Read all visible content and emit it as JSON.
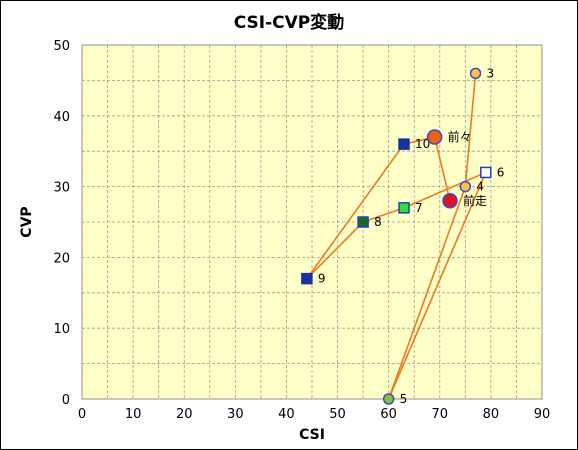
{
  "chart_data": {
    "type": "scatter",
    "title": "CSI-CVP変動",
    "xlabel": "CSI",
    "ylabel": "CVP",
    "xlim": [
      0,
      90
    ],
    "ylim": [
      0,
      50
    ],
    "xticks": [
      0,
      10,
      20,
      30,
      40,
      50,
      60,
      70,
      80,
      90
    ],
    "yticks": [
      0,
      10,
      20,
      30,
      40,
      50
    ],
    "grid": true,
    "line_color": "#f07820",
    "plot_background": "#ffffc8",
    "path_order": [
      "3",
      "4",
      "5",
      "6",
      "7",
      "8",
      "9",
      "10",
      "前々",
      "前走"
    ],
    "points": [
      {
        "label": "3",
        "x": 77,
        "y": 46,
        "marker": "circle",
        "fill": "#ffc040",
        "stroke": "#3050d0"
      },
      {
        "label": "4",
        "x": 75,
        "y": 30,
        "marker": "circle",
        "fill": "#ffc040",
        "stroke": "#3050d0"
      },
      {
        "label": "5",
        "x": 60,
        "y": 0,
        "marker": "circle",
        "fill": "#90c030",
        "stroke": "#3050d0"
      },
      {
        "label": "6",
        "x": 79,
        "y": 32,
        "marker": "square",
        "fill": "#ffffff",
        "stroke": "#2040c0"
      },
      {
        "label": "7",
        "x": 63,
        "y": 27,
        "marker": "square",
        "fill": "#30e030",
        "stroke": "#2040c0"
      },
      {
        "label": "8",
        "x": 55,
        "y": 25,
        "marker": "square",
        "fill": "#206820",
        "stroke": "#2040c0"
      },
      {
        "label": "9",
        "x": 44,
        "y": 17,
        "marker": "square",
        "fill": "#1830a0",
        "stroke": "#1830a0"
      },
      {
        "label": "10",
        "x": 63,
        "y": 36,
        "marker": "square",
        "fill": "#1830a0",
        "stroke": "#1830a0"
      },
      {
        "label": "前々",
        "x": 69,
        "y": 37,
        "marker": "circle-large",
        "fill": "#f06010",
        "stroke": "#3050d0"
      },
      {
        "label": "前走",
        "x": 72,
        "y": 28,
        "marker": "circle-large",
        "fill": "#e01020",
        "stroke": "#3050d0"
      }
    ]
  }
}
